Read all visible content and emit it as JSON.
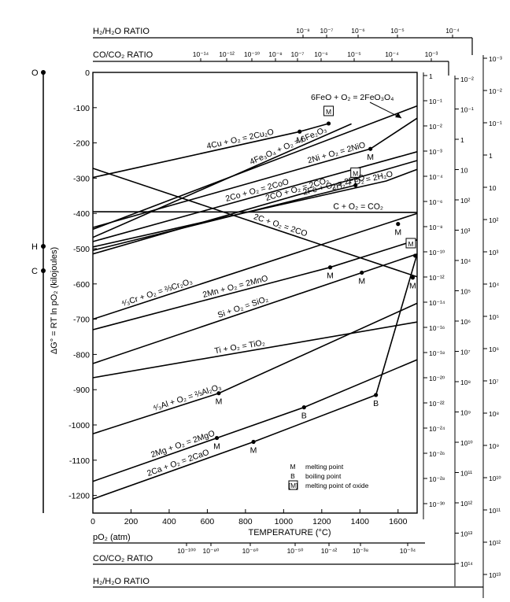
{
  "chart_data": {
    "type": "line",
    "title": "",
    "xlabel": "TEMPERATURE (°C)",
    "ylabel": "ΔG° = RT ln pO₂ (kilojoules)",
    "xlim": [
      0,
      1700
    ],
    "ylim": [
      -1250,
      0
    ],
    "x_ticks": [
      0,
      200,
      400,
      600,
      800,
      1000,
      1200,
      1400,
      1600
    ],
    "y_ticks": [
      0,
      -100,
      -200,
      -300,
      -400,
      -500,
      -600,
      -700,
      -800,
      -900,
      -1000,
      -1100,
      -1200
    ],
    "series": [
      {
        "name": "4Cu + O₂ = 2Cu₂O",
        "x": [
          0,
          1084,
          1236
        ],
        "y": [
          -298,
          -168,
          -145
        ]
      },
      {
        "name": "4Fe₃O₄ + O₂ = 6Fe₂O₃",
        "x": [
          0,
          1356
        ],
        "y": [
          -468,
          -146
        ]
      },
      {
        "name": "6FeO + O₂ = 2FeO₃O₄",
        "x": [
          0,
          1700
        ],
        "y": [
          -445,
          -95
        ]
      },
      {
        "name": "2Ni + O₂ = 2NiO",
        "x": [
          0,
          1455,
          1700
        ],
        "y": [
          -440,
          -217,
          -130
        ]
      },
      {
        "name": "2Co + O₂ = 2CoO",
        "x": [
          0,
          1700
        ],
        "y": [
          -480,
          -225
        ]
      },
      {
        "name": "2CO + O₂ = 2CO₂",
        "x": [
          0,
          1700
        ],
        "y": [
          -515,
          -250
        ]
      },
      {
        "name": "2H₂ + O₂ = 2H₂O",
        "x": [
          0,
          1538,
          1700
        ],
        "y": [
          -495,
          -308,
          -275
        ]
      },
      {
        "name": "2Fe + O₂ = 2FeO",
        "x": [
          0,
          1377
        ],
        "y": [
          -505,
          -320
        ]
      },
      {
        "name": "C + O₂ = CO₂",
        "x": [
          0,
          1700
        ],
        "y": [
          -395,
          -397
        ]
      },
      {
        "name": "2C + O₂ = 2CO",
        "x": [
          0,
          1700
        ],
        "y": [
          -272,
          -580
        ]
      },
      {
        "name": "⁴⁄₃Cr + O₂ = ⅔Cr₂O₃",
        "x": [
          0,
          1700
        ],
        "y": [
          -700,
          -400
        ]
      },
      {
        "name": "2Mn + O₂ = 2MnO",
        "x": [
          0,
          1244,
          1700
        ],
        "y": [
          -730,
          -553,
          -475
        ]
      },
      {
        "name": "Si + O₂ = SiO₂",
        "x": [
          0,
          1410,
          1700
        ],
        "y": [
          -826,
          -568,
          -515
        ]
      },
      {
        "name": "Ti + O₂ = TiO₂",
        "x": [
          0,
          1700
        ],
        "y": [
          -866,
          -708
        ]
      },
      {
        "name": "⁴⁄₃Al + O₂ = ⅔Al₂O₃",
        "x": [
          0,
          660,
          1700
        ],
        "y": [
          -1025,
          -910,
          -655
        ]
      },
      {
        "name": "2Mg + O₂ = 2MgO",
        "x": [
          0,
          650,
          1107,
          1700
        ],
        "y": [
          -1160,
          -1037,
          -950,
          -815
        ]
      },
      {
        "name": "2Ca + O₂ = 2CaO",
        "x": [
          0,
          842,
          1484,
          1700
        ],
        "y": [
          -1210,
          -1048,
          -915,
          -515
        ]
      }
    ],
    "markers": [
      {
        "label": "M",
        "x": 1084,
        "y": -168
      },
      {
        "label": "M",
        "x": 1455,
        "y": -217
      },
      {
        "label": "M",
        "x": 1600,
        "y": -430
      },
      {
        "label": "M",
        "x": 1244,
        "y": -553
      },
      {
        "label": "M",
        "x": 1410,
        "y": -568
      },
      {
        "label": "M",
        "x": 1677,
        "y": -582
      },
      {
        "label": "M",
        "x": 660,
        "y": -910
      },
      {
        "label": "M",
        "x": 650,
        "y": -1037
      },
      {
        "label": "M",
        "x": 842,
        "y": -1048
      },
      {
        "label": "B",
        "x": 1107,
        "y": -950
      },
      {
        "label": "B",
        "x": 1484,
        "y": -915
      }
    ],
    "oxide_markers": [
      {
        "label": "M",
        "x": 1236,
        "y": -145
      },
      {
        "label": "M",
        "x": 1377,
        "y": -320
      },
      {
        "label": "M",
        "x": 1690,
        "y": -520
      }
    ],
    "legend": [
      {
        "symbol": "M",
        "text": "melting point"
      },
      {
        "symbol": "B",
        "text": "boiling point"
      },
      {
        "symbol": "[M]",
        "text": "melting point of oxide"
      }
    ],
    "nomogram": {
      "po2_label": "pO₂ (atm)",
      "po2_right_ticks": [
        "1",
        "10⁻¹",
        "10⁻²",
        "10⁻³",
        "10⁻⁴",
        "10⁻⁶",
        "10⁻⁸",
        "10⁻¹⁰",
        "10⁻¹²",
        "10⁻¹⁴",
        "10⁻¹⁶",
        "10⁻¹⁸",
        "10⁻²⁰",
        "10⁻²²",
        "10⁻²⁴",
        "10⁻²⁶",
        "10⁻²⁸",
        "10⁻³⁰"
      ],
      "po2_bottom_ticks": [
        "10⁻¹⁰⁰",
        "10⁻⁸⁰",
        "10⁻⁶⁰",
        "10⁻⁵⁰",
        "10⁻⁴²",
        "10⁻³⁸",
        "10⁻³⁴"
      ],
      "co_co2_label": "CO/CO₂ RATIO",
      "co_co2_top_ticks": [
        "10⁻¹⁴",
        "10⁻¹²",
        "10⁻¹⁰",
        "10⁻⁸",
        "10⁻⁷",
        "10⁻⁶",
        "10⁻⁵",
        "10⁻⁴",
        "10⁻³"
      ],
      "co_co2_right_ticks": [
        "10⁻²",
        "10⁻¹",
        "1",
        "10",
        "10²",
        "10³",
        "10⁴",
        "10⁵",
        "10⁶",
        "10⁷",
        "10⁸",
        "10⁹",
        "10¹⁰",
        "10¹¹",
        "10¹²",
        "10¹³",
        "10¹⁴"
      ],
      "h2_h2o_label": "H₂/H₂O RATIO",
      "h2_h2o_top_ticks": [
        "10⁻⁸",
        "10⁻⁷",
        "10⁻⁶",
        "10⁻⁵",
        "10⁻⁴"
      ],
      "h2_h2o_right_ticks": [
        "10⁻³",
        "10⁻²",
        "10⁻¹",
        "1",
        "10",
        "10²",
        "10³",
        "10⁴",
        "10⁵",
        "10⁶",
        "10⁷",
        "10⁸",
        "10⁹",
        "10¹⁰",
        "10¹¹",
        "10¹²",
        "10¹³"
      ],
      "pivots": [
        "O",
        "H",
        "C"
      ]
    }
  }
}
